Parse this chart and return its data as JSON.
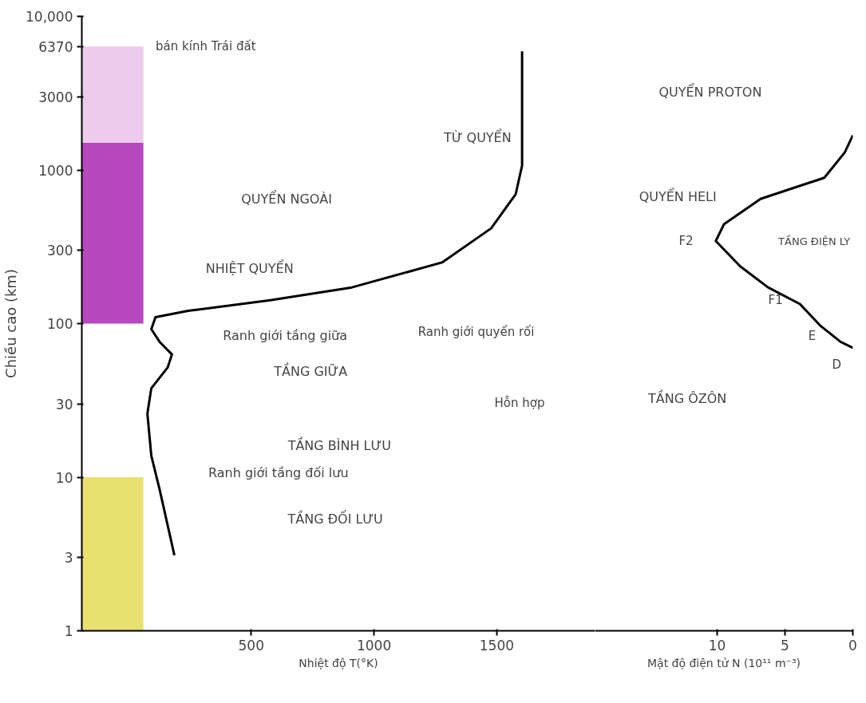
{
  "chart_data": [
    {
      "type": "line",
      "xlabel": "Nhiệt độ T(°K)",
      "ylabel": "Chiều cao (km)",
      "log": "y",
      "line_style": "solid",
      "xlim": [
        -190,
        1900
      ],
      "xticks": [
        500,
        1000,
        1500
      ],
      "ylim": [
        1,
        10000
      ],
      "yticks": [
        1,
        3,
        10,
        30,
        100,
        300,
        1000,
        3000,
        6370,
        {
          "value": 10000,
          "label": "10,000"
        }
      ],
      "series": [
        {
          "color": "#000000",
          "x": [
            187,
            127,
            93,
            77,
            93,
            160,
            177,
            127,
            93,
            110,
            243,
            577,
            910,
            1277,
            1477,
            1577,
            1603,
            1603,
            1603
          ],
          "values": [
            3.1,
            8.3,
            13.8,
            25.9,
            37.9,
            51.9,
            63,
            76,
            92,
            110,
            121,
            142,
            172,
            250,
            417,
            696,
            1070,
            2440,
            5930
          ]
        }
      ],
      "bands": [
        {
          "axis": "y",
          "from": 1,
          "to": 10,
          "color": "#e8e070"
        },
        {
          "axis": "y",
          "from": 100,
          "to": 1500,
          "color": "#b848c0"
        },
        {
          "axis": "y",
          "from": 1500,
          "to": 6370,
          "color": "#eccbec"
        }
      ],
      "annotations": [
        "bán kính Trái đất",
        "TỪ QUYỂN",
        "QUYỂN NGOÀI",
        "NHIỆT QUYỂN",
        "Ranh giới tầng giữa",
        "Ranh giới quyển rối",
        "TẦNG GIỮA",
        "Hỗn hợp",
        "TẦNG BÌNH LƯU",
        "Ranh giới tầng đối lưu",
        "TẦNG ĐỐI LƯU"
      ]
    },
    {
      "type": "line",
      "xlabel": "Mật độ điện tử N (10¹¹ m⁻³)",
      "log": "y",
      "line_style": "solid",
      "tick_labels": "x",
      "xlim": [
        19,
        0
      ],
      "xticks": [
        10,
        5,
        0
      ],
      "ylim": [
        1,
        10000
      ],
      "series": [
        {
          "color": "#000000",
          "x": [
            0,
            0.9,
            2.4,
            3.9,
            6.25,
            8.3,
            10.1,
            9.5,
            6.8,
            2.1,
            0.6,
            0
          ],
          "values": [
            69.5,
            76,
            97,
            134,
            172,
            236,
            345,
            443,
            648,
            890,
            1300,
            1680
          ]
        }
      ],
      "annotations": [
        "QUYỂN PROTON",
        "QUYỂN HELI",
        "F2",
        "TẦNG ĐIỆN LY",
        "F1",
        "E",
        "D",
        "TẦNG ÔZÔN"
      ]
    }
  ]
}
